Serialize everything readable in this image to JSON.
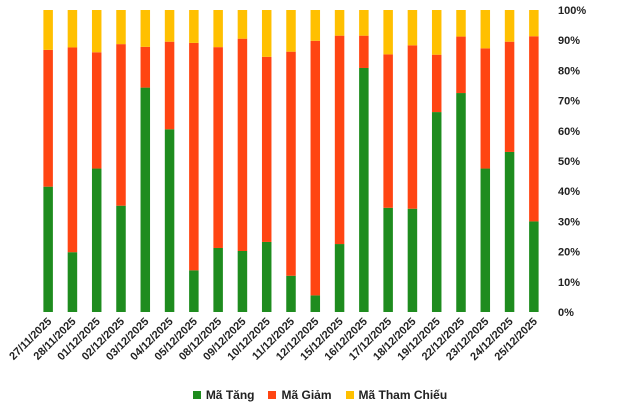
{
  "chart_data": {
    "type": "bar",
    "stacked": true,
    "percent": true,
    "categories": [
      "27/11/2025",
      "28/11/2025",
      "01/12/2025",
      "02/12/2025",
      "03/12/2025",
      "04/12/2025",
      "05/12/2025",
      "08/12/2025",
      "09/12/2025",
      "10/12/2025",
      "11/12/2025",
      "12/12/2025",
      "15/12/2025",
      "16/12/2025",
      "17/12/2025",
      "18/12/2025",
      "19/12/2025",
      "22/12/2025",
      "23/12/2025",
      "24/12/2025",
      "25/12/2025"
    ],
    "series": [
      {
        "name": "Mã Tăng",
        "color": "#1e8c1e",
        "values": [
          41.5,
          19.8,
          47.5,
          35.2,
          74.3,
          60.5,
          13.8,
          21.2,
          20.2,
          23.2,
          12.0,
          5.5,
          22.5,
          80.8,
          34.5,
          34.2,
          66.2,
          72.5,
          47.5,
          53.0,
          30.0
        ]
      },
      {
        "name": "Mã Giảm",
        "color": "#ff4512",
        "values": [
          45.3,
          67.8,
          38.5,
          53.5,
          13.5,
          29.0,
          75.3,
          66.5,
          70.3,
          61.3,
          74.2,
          84.3,
          69.0,
          10.7,
          50.8,
          54.1,
          19.0,
          18.7,
          39.8,
          36.5,
          61.3
        ]
      },
      {
        "name": "Mã Tham Chiếu",
        "color": "#ffc000",
        "values": [
          13.2,
          12.4,
          14.0,
          11.3,
          12.2,
          10.5,
          10.9,
          12.3,
          9.5,
          15.5,
          13.8,
          10.2,
          8.5,
          8.5,
          14.7,
          11.7,
          14.8,
          8.8,
          12.7,
          10.5,
          8.7
        ]
      }
    ],
    "y_axis": {
      "position": "right",
      "ticks": [
        "0%",
        "10%",
        "20%",
        "30%",
        "40%",
        "50%",
        "60%",
        "70%",
        "80%",
        "90%",
        "100%"
      ],
      "ylim": [
        0,
        100
      ]
    },
    "legend": {
      "position": "bottom"
    },
    "grid": false
  }
}
